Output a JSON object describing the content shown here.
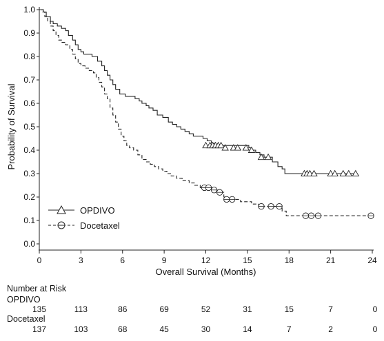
{
  "chart_data": {
    "type": "line",
    "title": "",
    "xlabel": "Overall Survival (Months)",
    "ylabel": "Probability of Survival",
    "xlim": [
      0,
      24
    ],
    "ylim": [
      0.0,
      1.0
    ],
    "x_ticks": [
      0,
      3,
      6,
      9,
      12,
      15,
      18,
      21,
      24
    ],
    "x_tick_labels": [
      "0",
      "3",
      "6",
      "9",
      "12",
      "15",
      "18",
      "21",
      "24"
    ],
    "y_ticks": [
      0.0,
      0.1,
      0.2,
      0.3,
      0.4,
      0.5,
      0.6,
      0.7,
      0.8,
      0.9,
      1.0
    ],
    "y_tick_labels": [
      "0.0",
      "0.1",
      "0.2",
      "0.3",
      "0.4",
      "0.5",
      "0.6",
      "0.7",
      "0.8",
      "0.9",
      "1.0"
    ],
    "grid": false,
    "legend_position": "bottom-left",
    "series": [
      {
        "name": "OPDIVO",
        "line_style": "solid",
        "marker": "triangle",
        "color": "#222222",
        "steps": [
          [
            0,
            1.0
          ],
          [
            0.3,
            0.99
          ],
          [
            0.5,
            0.97
          ],
          [
            0.8,
            0.95
          ],
          [
            1.0,
            0.94
          ],
          [
            1.3,
            0.93
          ],
          [
            1.6,
            0.92
          ],
          [
            1.9,
            0.91
          ],
          [
            2.1,
            0.89
          ],
          [
            2.4,
            0.87
          ],
          [
            2.6,
            0.85
          ],
          [
            2.8,
            0.83
          ],
          [
            3.0,
            0.82
          ],
          [
            3.2,
            0.81
          ],
          [
            3.5,
            0.81
          ],
          [
            3.8,
            0.8
          ],
          [
            4.2,
            0.78
          ],
          [
            4.5,
            0.76
          ],
          [
            4.7,
            0.74
          ],
          [
            4.9,
            0.72
          ],
          [
            5.1,
            0.7
          ],
          [
            5.3,
            0.68
          ],
          [
            5.5,
            0.66
          ],
          [
            5.8,
            0.64
          ],
          [
            6.2,
            0.63
          ],
          [
            6.6,
            0.63
          ],
          [
            6.9,
            0.62
          ],
          [
            7.2,
            0.61
          ],
          [
            7.4,
            0.6
          ],
          [
            7.7,
            0.59
          ],
          [
            7.9,
            0.58
          ],
          [
            8.2,
            0.57
          ],
          [
            8.5,
            0.55
          ],
          [
            8.9,
            0.54
          ],
          [
            9.3,
            0.52
          ],
          [
            9.6,
            0.51
          ],
          [
            9.9,
            0.5
          ],
          [
            10.2,
            0.49
          ],
          [
            10.5,
            0.48
          ],
          [
            10.8,
            0.47
          ],
          [
            11.1,
            0.46
          ],
          [
            11.8,
            0.45
          ],
          [
            12.1,
            0.44
          ],
          [
            12.4,
            0.43
          ],
          [
            12.7,
            0.42
          ],
          [
            13.3,
            0.42
          ],
          [
            15.1,
            0.41
          ],
          [
            15.3,
            0.4
          ],
          [
            15.6,
            0.39
          ],
          [
            15.9,
            0.38
          ],
          [
            16.2,
            0.37
          ],
          [
            16.8,
            0.35
          ],
          [
            17.2,
            0.33
          ],
          [
            17.5,
            0.32
          ],
          [
            17.7,
            0.3
          ],
          [
            22.8,
            0.3
          ]
        ],
        "censored": [
          [
            12.0,
            0.42
          ],
          [
            12.3,
            0.42
          ],
          [
            12.5,
            0.42
          ],
          [
            12.7,
            0.42
          ],
          [
            12.9,
            0.42
          ],
          [
            13.1,
            0.42
          ],
          [
            13.4,
            0.41
          ],
          [
            14.0,
            0.41
          ],
          [
            14.3,
            0.41
          ],
          [
            14.9,
            0.41
          ],
          [
            15.3,
            0.4
          ],
          [
            16.0,
            0.37
          ],
          [
            16.5,
            0.37
          ],
          [
            19.1,
            0.3
          ],
          [
            19.3,
            0.3
          ],
          [
            19.5,
            0.3
          ],
          [
            19.8,
            0.3
          ],
          [
            21.0,
            0.3
          ],
          [
            21.3,
            0.3
          ],
          [
            21.9,
            0.3
          ],
          [
            22.3,
            0.3
          ],
          [
            22.8,
            0.3
          ]
        ]
      },
      {
        "name": "Docetaxel",
        "line_style": "dashed",
        "marker": "circle",
        "color": "#222222",
        "steps": [
          [
            0,
            1.0
          ],
          [
            0.2,
            0.99
          ],
          [
            0.4,
            0.97
          ],
          [
            0.6,
            0.95
          ],
          [
            0.8,
            0.93
          ],
          [
            1.0,
            0.91
          ],
          [
            1.2,
            0.89
          ],
          [
            1.4,
            0.87
          ],
          [
            1.6,
            0.86
          ],
          [
            1.9,
            0.85
          ],
          [
            2.2,
            0.83
          ],
          [
            2.4,
            0.81
          ],
          [
            2.6,
            0.79
          ],
          [
            2.8,
            0.77
          ],
          [
            3.0,
            0.76
          ],
          [
            3.3,
            0.75
          ],
          [
            3.6,
            0.74
          ],
          [
            3.9,
            0.73
          ],
          [
            4.1,
            0.71
          ],
          [
            4.3,
            0.69
          ],
          [
            4.5,
            0.67
          ],
          [
            4.7,
            0.64
          ],
          [
            4.9,
            0.62
          ],
          [
            5.1,
            0.58
          ],
          [
            5.3,
            0.55
          ],
          [
            5.5,
            0.52
          ],
          [
            5.7,
            0.49
          ],
          [
            5.9,
            0.46
          ],
          [
            6.1,
            0.44
          ],
          [
            6.3,
            0.42
          ],
          [
            6.5,
            0.41
          ],
          [
            6.8,
            0.4
          ],
          [
            7.1,
            0.38
          ],
          [
            7.4,
            0.36
          ],
          [
            7.7,
            0.35
          ],
          [
            8.0,
            0.34
          ],
          [
            8.3,
            0.33
          ],
          [
            8.6,
            0.32
          ],
          [
            8.9,
            0.31
          ],
          [
            9.2,
            0.3
          ],
          [
            9.5,
            0.29
          ],
          [
            9.9,
            0.28
          ],
          [
            10.3,
            0.27
          ],
          [
            10.8,
            0.26
          ],
          [
            11.2,
            0.25
          ],
          [
            11.6,
            0.24
          ],
          [
            12.6,
            0.23
          ],
          [
            13.0,
            0.22
          ],
          [
            13.3,
            0.2
          ],
          [
            13.6,
            0.19
          ],
          [
            14.5,
            0.18
          ],
          [
            15.3,
            0.17
          ],
          [
            15.8,
            0.16
          ],
          [
            17.5,
            0.14
          ],
          [
            17.8,
            0.12
          ],
          [
            23.9,
            0.12
          ]
        ],
        "censored": [
          [
            11.9,
            0.24
          ],
          [
            12.2,
            0.24
          ],
          [
            12.6,
            0.23
          ],
          [
            13.0,
            0.22
          ],
          [
            13.5,
            0.19
          ],
          [
            13.9,
            0.19
          ],
          [
            16.0,
            0.16
          ],
          [
            16.7,
            0.16
          ],
          [
            17.3,
            0.16
          ],
          [
            19.2,
            0.12
          ],
          [
            19.6,
            0.12
          ],
          [
            20.1,
            0.12
          ],
          [
            23.9,
            0.12
          ]
        ]
      }
    ]
  },
  "legend": {
    "items": [
      {
        "label": "OPDIVO"
      },
      {
        "label": "Docetaxel"
      }
    ]
  },
  "risk_table": {
    "title": "Number at Risk",
    "times": [
      "0",
      "3",
      "6",
      "9",
      "12",
      "15",
      "18",
      "21",
      "24"
    ],
    "rows": [
      {
        "label": "OPDIVO",
        "values": [
          "135",
          "113",
          "86",
          "69",
          "52",
          "31",
          "15",
          "7",
          "0"
        ]
      },
      {
        "label": "Docetaxel",
        "values": [
          "137",
          "103",
          "68",
          "45",
          "30",
          "14",
          "7",
          "2",
          "0"
        ]
      }
    ]
  }
}
